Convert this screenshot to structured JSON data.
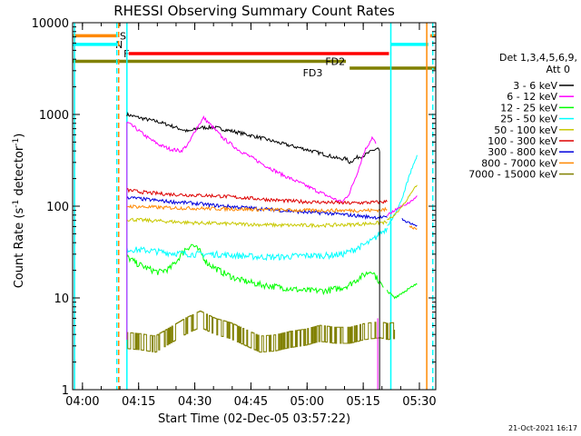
{
  "chart_data": {
    "type": "line",
    "title": "RHESSI Observing Summary Count Rates",
    "xlabel": "Start Time (02-Dec-05 03:57:22)",
    "ylabel_main": "Count Rate (s",
    "ylabel_sup1": "-1",
    "ylabel_mid": " detector",
    "ylabel_sup2": "-1",
    "ylabel_end": ")",
    "timestamp": "21-Oct-2021 16:17",
    "x_unit": "minutes since 03:57:22",
    "xlim": [
      0,
      97
    ],
    "ylim": [
      1,
      10000
    ],
    "yscale": "log",
    "x_ticks": [
      {
        "x": 2.63,
        "label": "04:00"
      },
      {
        "x": 17.63,
        "label": "04:15"
      },
      {
        "x": 32.63,
        "label": "04:30"
      },
      {
        "x": 47.63,
        "label": "04:45"
      },
      {
        "x": 62.63,
        "label": "05:00"
      },
      {
        "x": 77.63,
        "label": "05:15"
      },
      {
        "x": 92.63,
        "label": "05:30"
      }
    ],
    "y_ticks": [
      {
        "y": 1,
        "label": "1"
      },
      {
        "y": 10,
        "label": "10"
      },
      {
        "y": 100,
        "label": "100"
      },
      {
        "y": 1000,
        "label": "1000"
      },
      {
        "y": 10000,
        "label": "10000"
      }
    ],
    "legend": {
      "header1": "Det 1,3,4,5,6,9,",
      "header2": "Att 0",
      "placement": "right"
    },
    "series": [
      {
        "name": "3 - 6 keV",
        "color": "#000000",
        "x": [
          14.5,
          17,
          20,
          23,
          26,
          29,
          31,
          34,
          38,
          44,
          50,
          56,
          62,
          68,
          71,
          73,
          74,
          75,
          76,
          78,
          80,
          81.5,
          82
        ],
        "y": [
          1000,
          940,
          880,
          830,
          760,
          690,
          650,
          720,
          720,
          640,
          560,
          480,
          420,
          360,
          330,
          330,
          300,
          320,
          340,
          360,
          400,
          430,
          400
        ]
      },
      {
        "name": "6 - 12 keV",
        "color": "#ff00ff",
        "x": [
          14.5,
          17,
          20,
          23,
          26,
          29,
          31,
          33,
          35,
          37,
          40,
          44,
          50,
          56,
          62,
          68,
          72,
          74,
          76,
          78,
          80,
          81
        ],
        "y": [
          820,
          700,
          560,
          470,
          420,
          400,
          480,
          700,
          920,
          760,
          560,
          420,
          300,
          220,
          170,
          130,
          110,
          140,
          230,
          400,
          560,
          480
        ]
      },
      {
        "name": "12 - 25 keV",
        "color": "#00ff00",
        "x": [
          14.5,
          17,
          20,
          23,
          26,
          28,
          30,
          32,
          34,
          36,
          40,
          44,
          50,
          56,
          62,
          68,
          72,
          74,
          76,
          78,
          80,
          81,
          83
        ],
        "y": [
          28,
          24,
          21,
          19,
          21,
          26,
          34,
          38,
          32,
          24,
          19,
          16,
          14,
          13,
          12,
          12,
          13,
          14,
          16,
          18,
          20,
          17,
          13
        ]
      },
      {
        "name": "25 - 50 keV",
        "color": "#00ffff",
        "x": [
          14.5,
          20,
          26,
          32,
          38,
          44,
          50,
          56,
          62,
          68,
          72,
          74,
          76,
          78,
          80,
          82,
          84
        ],
        "y": [
          34,
          33,
          31,
          30,
          30,
          29,
          28,
          28,
          29,
          29,
          30,
          32,
          35,
          38,
          42,
          50,
          58
        ]
      },
      {
        "name": "50 - 100 keV",
        "color": "#c8c800",
        "x": [
          14.5,
          20,
          26,
          32,
          38,
          44,
          50,
          56,
          62,
          68,
          74,
          80,
          84
        ],
        "y": [
          72,
          70,
          68,
          66,
          65,
          64,
          63,
          62,
          62,
          62,
          63,
          65,
          67
        ]
      },
      {
        "name": "100 - 300 keV",
        "color": "#dd0000",
        "x": [
          14.5,
          20,
          26,
          32,
          38,
          44,
          50,
          56,
          62,
          68,
          74,
          80,
          84
        ],
        "y": [
          150,
          140,
          135,
          132,
          130,
          125,
          120,
          115,
          112,
          110,
          108,
          110,
          112
        ]
      },
      {
        "name": "300 - 800 keV",
        "color": "#0000dd",
        "x": [
          14.5,
          20,
          26,
          32,
          38,
          44,
          50,
          56,
          62,
          68,
          74,
          80,
          84
        ],
        "y": [
          125,
          118,
          112,
          108,
          102,
          98,
          94,
          90,
          86,
          84,
          80,
          76,
          75
        ]
      },
      {
        "name": "800 - 7000 keV",
        "color": "#ff8800",
        "x": [
          14.5,
          20,
          26,
          32,
          38,
          44,
          50,
          56,
          62,
          68,
          74,
          80,
          84
        ],
        "y": [
          100,
          98,
          96,
          95,
          94,
          93,
          92,
          91,
          90,
          90,
          90,
          90,
          92
        ]
      },
      {
        "name": "7000 - 15000 keV",
        "color": "#808000",
        "x": [
          14.5,
          18,
          22,
          26,
          30,
          34,
          38,
          42,
          46,
          50,
          54,
          58,
          62,
          66,
          70,
          74,
          78,
          82,
          84,
          86
        ],
        "y": [
          3.5,
          3.4,
          3.2,
          4,
          5,
          6,
          5,
          4.5,
          3.8,
          3.2,
          3.3,
          3.6,
          3.8,
          4.2,
          4,
          4,
          4.4,
          4.6,
          4.4,
          4.5
        ]
      }
    ],
    "tail_segments": [
      {
        "color": "#00ffff",
        "x": [
          84,
          86,
          88,
          90,
          92
        ],
        "y": [
          60,
          80,
          120,
          220,
          360
        ]
      },
      {
        "color": "#ff00ff",
        "x": [
          84,
          86,
          88,
          90,
          92
        ],
        "y": [
          80,
          90,
          100,
          110,
          130
        ]
      },
      {
        "color": "#c8c800",
        "x": [
          84,
          86,
          88,
          90,
          92
        ],
        "y": [
          70,
          80,
          100,
          130,
          170
        ]
      },
      {
        "color": "#ff8800",
        "x": [
          90,
          91,
          92
        ],
        "y": [
          60,
          58,
          57
        ]
      },
      {
        "color": "#0000dd",
        "x": [
          88,
          90,
          92
        ],
        "y": [
          72,
          66,
          62
        ]
      },
      {
        "color": "#00ff00",
        "x": [
          84,
          86,
          88,
          90,
          92
        ],
        "y": [
          12,
          10,
          11,
          13,
          14
        ]
      }
    ],
    "state_bars": [
      {
        "label": "S",
        "color": "#ff8800",
        "segments": [
          [
            0,
            12
          ],
          [
            95.5,
            97
          ]
        ],
        "y": 7200
      },
      {
        "label": "N",
        "color": "#00ffff",
        "segments": [
          [
            0,
            12
          ],
          [
            85,
            95
          ]
        ],
        "y": 5800
      },
      {
        "label": "F",
        "color": "#ff0000",
        "segments": [
          [
            15,
            84.5
          ]
        ],
        "y": 4600
      },
      {
        "label": "FD2",
        "color": "#808000",
        "segments": [
          [
            0,
            73
          ]
        ],
        "y": 3800
      },
      {
        "label": "FD3",
        "color": "#808000",
        "segments": [
          [
            74,
            97
          ]
        ],
        "y": 3200
      }
    ],
    "vlines": [
      {
        "x": 0.5,
        "color": "#00ffff",
        "style": "solid"
      },
      {
        "x": 11.8,
        "color": "#00ffff",
        "style": "dashed"
      },
      {
        "x": 12.3,
        "color": "#ff8800",
        "style": "dashed"
      },
      {
        "x": 14.5,
        "color": "#00ffff",
        "style": "solid"
      },
      {
        "x": 85.0,
        "color": "#00ffff",
        "style": "solid"
      },
      {
        "x": 94.6,
        "color": "#ff8800",
        "style": "solid"
      },
      {
        "x": 96.2,
        "color": "#00ffff",
        "style": "dashed"
      }
    ]
  }
}
